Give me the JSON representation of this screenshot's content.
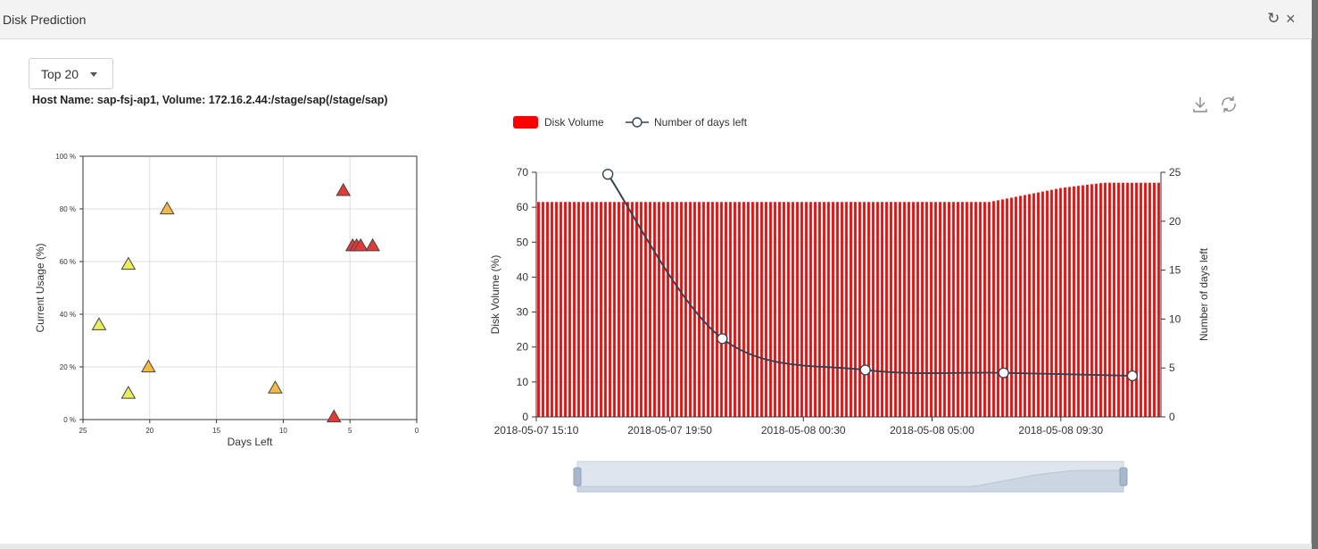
{
  "window": {
    "title": "Disk Prediction",
    "refresh_icon": "refresh-icon",
    "close_icon": "close-icon",
    "close_glyph": "×",
    "refresh_glyph": "↻"
  },
  "filter": {
    "selected": "Top 20"
  },
  "host_line": "Host Name: sap-fsj-ap1, Volume: 172.16.2.44:/stage/sap(/stage/sap)",
  "toolbox": {
    "download_icon": "download-icon",
    "restore_icon": "refresh-icon"
  },
  "colors": {
    "bar": "#ff0000",
    "line": "#2f4554",
    "tri_yellow": "#e8ee56",
    "tri_orange": "#f4b942",
    "tri_red": "#e53935"
  },
  "chart_data": [
    {
      "type": "scatter",
      "xlabel": "Days Left",
      "ylabel": "Current Usage (%)",
      "xlim": [
        25,
        0
      ],
      "ylim": [
        0,
        100
      ],
      "x_ticks": [
        "25",
        "20",
        "15",
        "10",
        "5",
        "0"
      ],
      "y_ticks": [
        "0 %",
        "20 %",
        "40 %",
        "60 %",
        "80 %",
        "100 %"
      ],
      "marker": "triangle",
      "points": [
        {
          "x": 23.8,
          "y": 36,
          "severity": "yellow"
        },
        {
          "x": 21.6,
          "y": 59,
          "severity": "yellow"
        },
        {
          "x": 21.6,
          "y": 10,
          "severity": "yellow"
        },
        {
          "x": 20.1,
          "y": 20,
          "severity": "orange"
        },
        {
          "x": 18.7,
          "y": 80,
          "severity": "orange"
        },
        {
          "x": 10.6,
          "y": 12,
          "severity": "orange"
        },
        {
          "x": 6.2,
          "y": 1,
          "severity": "red"
        },
        {
          "x": 5.5,
          "y": 87,
          "severity": "red"
        },
        {
          "x": 4.8,
          "y": 66,
          "severity": "red"
        },
        {
          "x": 4.5,
          "y": 66,
          "severity": "red"
        },
        {
          "x": 4.2,
          "y": 66,
          "severity": "red"
        },
        {
          "x": 3.3,
          "y": 66,
          "severity": "red"
        }
      ]
    },
    {
      "type": "bar",
      "legend": [
        "Disk Volume",
        "Number of days left"
      ],
      "ylabel": "Disk Volume (%)",
      "y2label": "Number of days left",
      "ylim": [
        0,
        70
      ],
      "y2lim": [
        0,
        25
      ],
      "y_ticks": [
        "0",
        "10",
        "20",
        "30",
        "40",
        "50",
        "60",
        "70"
      ],
      "y2_ticks": [
        "0",
        "5",
        "10",
        "15",
        "20",
        "25"
      ],
      "x_ticks": [
        "2018-05-07 15:10",
        "2018-05-07 19:50",
        "2018-05-08 00:30",
        "2018-05-08 05:00",
        "2018-05-08 09:30"
      ],
      "x_range": [
        "2018-05-07 15:10",
        "2018-05-08 13:00"
      ],
      "bar_count": 140,
      "series": [
        {
          "name": "Disk Volume",
          "kind": "bar",
          "profile": [
            {
              "from": "2018-05-07 15:10",
              "value": 61.5
            },
            {
              "from": "2018-05-08 07:00",
              "value": 61.5
            },
            {
              "from": "2018-05-08 09:30",
              "value": 65.5
            },
            {
              "from": "2018-05-08 11:00",
              "value": 67
            },
            {
              "from": "2018-05-08 13:00",
              "value": 67
            }
          ]
        },
        {
          "name": "Number of days left",
          "kind": "line",
          "points": [
            {
              "x": "2018-05-07 17:40",
              "y": 24.8
            },
            {
              "x": "2018-05-07 21:40",
              "y": 8
            },
            {
              "x": "2018-05-08 02:40",
              "y": 4.8
            },
            {
              "x": "2018-05-08 07:30",
              "y": 4.5
            },
            {
              "x": "2018-05-08 12:00",
              "y": 4.2
            }
          ]
        }
      ]
    }
  ]
}
